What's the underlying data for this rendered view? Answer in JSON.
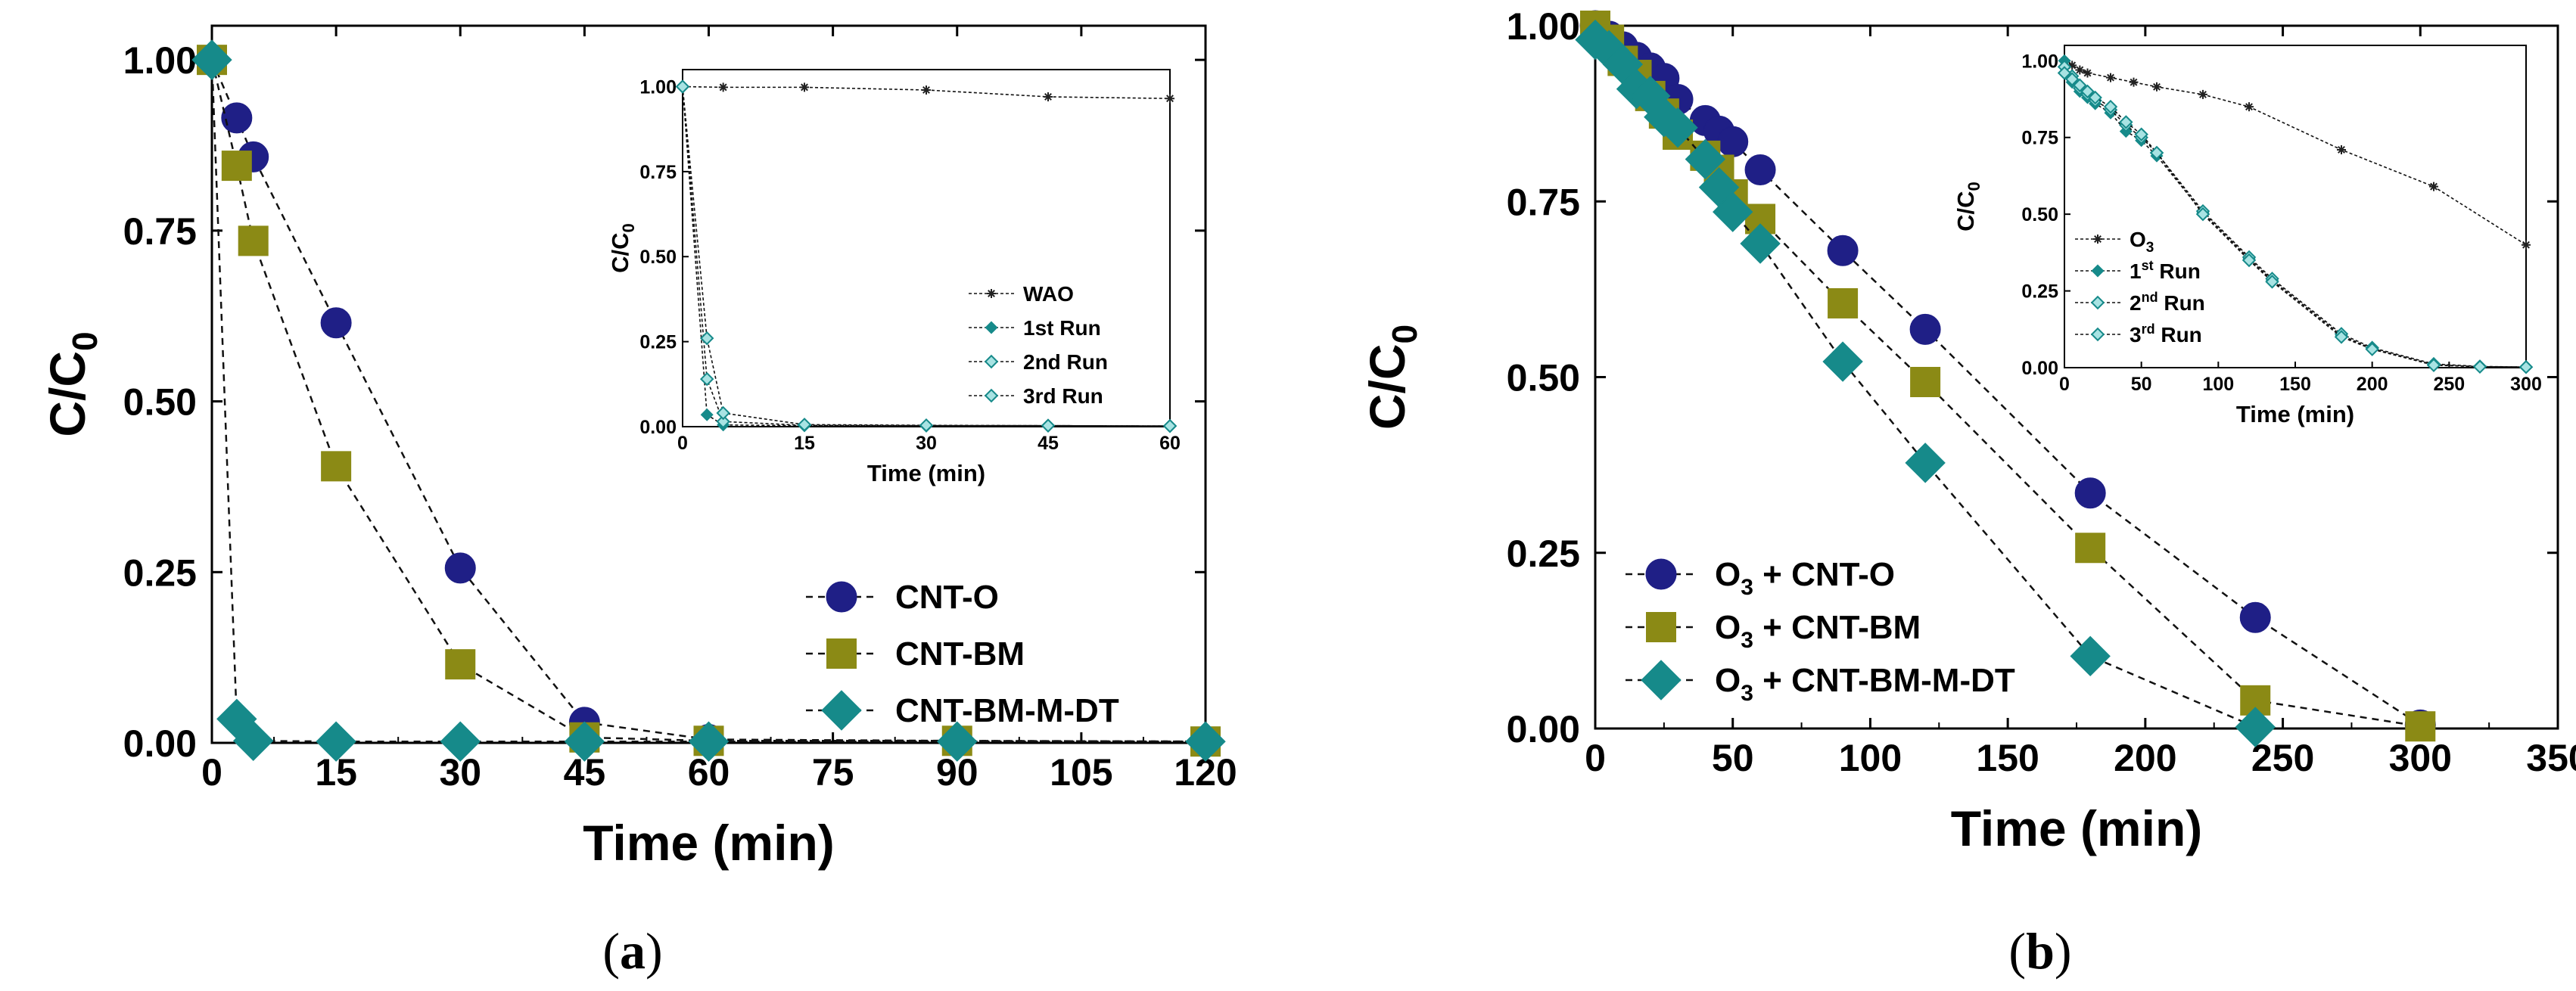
{
  "colors": {
    "navy": "#1f1f86",
    "olive": "#8b8a15",
    "teal": "#168a8a",
    "black": "#000000"
  },
  "chart_data": [
    {
      "panel": "a",
      "caption_prefix": "(",
      "caption_letter": "a",
      "caption_suffix": ")",
      "type": "line",
      "xlabel": "Time (min)",
      "ylabel_main": "C/C",
      "ylabel_sub": "0",
      "xlim": [
        0,
        120
      ],
      "ylim": [
        0,
        1.05
      ],
      "xticks": [
        "0",
        "15",
        "30",
        "45",
        "60",
        "75",
        "90",
        "105",
        "120"
      ],
      "yticks": [
        "0.00",
        "0.25",
        "0.50",
        "0.75",
        "1.00"
      ],
      "legend_position": "lower-right",
      "series": [
        {
          "name": "CNT-O",
          "name_prefix": "",
          "name_sub": "",
          "marker": "circle",
          "color": "#1f1f86",
          "x": [
            0,
            3,
            5,
            15,
            30,
            45,
            60,
            90,
            120
          ],
          "y": [
            1.0,
            0.915,
            0.858,
            0.615,
            0.256,
            0.03,
            0.005,
            0.003,
            0.002
          ]
        },
        {
          "name": "CNT-BM",
          "name_prefix": "",
          "name_sub": "",
          "marker": "square",
          "color": "#8b8a15",
          "x": [
            0,
            3,
            5,
            15,
            30,
            45,
            60,
            90,
            120
          ],
          "y": [
            1.0,
            0.845,
            0.735,
            0.405,
            0.115,
            0.008,
            0.003,
            0.003,
            0.002
          ]
        },
        {
          "name": "CNT-BM-M-DT",
          "name_prefix": "",
          "name_sub": "",
          "marker": "diamond",
          "color": "#168a8a",
          "x": [
            0,
            3,
            5,
            15,
            30,
            45,
            60,
            90,
            120
          ],
          "y": [
            1.0,
            0.035,
            0.003,
            0.002,
            0.002,
            0.002,
            0.002,
            0.002,
            0.002
          ]
        }
      ],
      "inset": {
        "xlabel": "Time (min)",
        "ylabel_main": "C/C",
        "ylabel_sub": "0",
        "xlim": [
          0,
          60
        ],
        "ylim": [
          0,
          1.05
        ],
        "xticks": [
          "0",
          "15",
          "30",
          "45",
          "60"
        ],
        "yticks": [
          "0.00",
          "0.25",
          "0.50",
          "0.75",
          "1.00"
        ],
        "legend_position": "lower-right",
        "series": [
          {
            "name": "WAO",
            "sup": "",
            "suffix": "",
            "marker": "star",
            "x": [
              0,
              5,
              15,
              30,
              45,
              60
            ],
            "y": [
              1.0,
              0.998,
              0.998,
              0.99,
              0.97,
              0.965
            ]
          },
          {
            "name": "1st Run",
            "sup": "",
            "suffix": "",
            "marker": "diamond",
            "x": [
              0,
              3,
              5,
              15,
              30,
              45,
              60
            ],
            "y": [
              1.0,
              0.035,
              0.005,
              0.003,
              0.003,
              0.003,
              0.002
            ]
          },
          {
            "name": "2nd Run",
            "sup": "",
            "suffix": "",
            "marker": "diamond-open",
            "x": [
              0,
              3,
              5,
              15,
              30,
              45,
              60
            ],
            "y": [
              1.0,
              0.14,
              0.015,
              0.004,
              0.003,
              0.003,
              0.002
            ]
          },
          {
            "name": "3rd Run",
            "sup": "",
            "suffix": "",
            "marker": "diamond-open",
            "x": [
              0,
              3,
              5,
              15,
              30,
              45,
              60
            ],
            "y": [
              1.0,
              0.26,
              0.04,
              0.006,
              0.004,
              0.003,
              0.002
            ]
          }
        ]
      }
    },
    {
      "panel": "b",
      "caption_prefix": "(",
      "caption_letter": "b",
      "caption_suffix": ")",
      "type": "line",
      "xlabel": "Time (min)",
      "ylabel_main": "C/C",
      "ylabel_sub": "0",
      "xlim": [
        0,
        350
      ],
      "ylim": [
        0,
        1.0
      ],
      "xticks": [
        "0",
        "50",
        "100",
        "150",
        "200",
        "250",
        "300",
        "350"
      ],
      "yticks": [
        "0.00",
        "0.25",
        "0.50",
        "0.75",
        "1.00"
      ],
      "legend_position": "lower-left",
      "series": [
        {
          "name": " + CNT-O",
          "name_prefix": "O",
          "name_sub": "3",
          "marker": "circle",
          "color": "#1f1f86",
          "x": [
            0,
            5,
            10,
            15,
            20,
            25,
            30,
            40,
            45,
            50,
            60,
            90,
            120,
            180,
            240,
            300
          ],
          "y": [
            1.0,
            0.985,
            0.97,
            0.955,
            0.94,
            0.925,
            0.895,
            0.865,
            0.85,
            0.835,
            0.795,
            0.68,
            0.568,
            0.335,
            0.158,
            0.005
          ]
        },
        {
          "name": " + CNT-BM",
          "name_prefix": "O",
          "name_sub": "3",
          "marker": "square",
          "color": "#8b8a15",
          "x": [
            0,
            5,
            10,
            15,
            20,
            25,
            30,
            40,
            45,
            50,
            60,
            90,
            120,
            180,
            240,
            300
          ],
          "y": [
            1.0,
            0.98,
            0.95,
            0.93,
            0.9,
            0.875,
            0.845,
            0.815,
            0.795,
            0.76,
            0.725,
            0.605,
            0.493,
            0.257,
            0.04,
            0.003
          ]
        },
        {
          "name": " + CNT-BM-M-DT",
          "name_prefix": "O",
          "name_sub": "3",
          "marker": "diamond",
          "color": "#168a8a",
          "x": [
            0,
            5,
            10,
            15,
            20,
            25,
            30,
            40,
            45,
            50,
            60,
            90,
            120,
            180,
            240
          ],
          "y": [
            0.98,
            0.965,
            0.945,
            0.91,
            0.9,
            0.87,
            0.855,
            0.81,
            0.77,
            0.735,
            0.69,
            0.522,
            0.378,
            0.103,
            0.002
          ]
        }
      ],
      "inset": {
        "xlabel": "Time (min)",
        "ylabel_main": "C/C",
        "ylabel_sub": "0",
        "xlim": [
          0,
          300
        ],
        "ylim": [
          0,
          1.05
        ],
        "xticks": [
          "0",
          "50",
          "100",
          "150",
          "200",
          "250",
          "300"
        ],
        "yticks": [
          "0.00",
          "0.25",
          "0.50",
          "0.75",
          "1.00"
        ],
        "legend_position": "lower-left",
        "series": [
          {
            "name": "O",
            "sub": "3",
            "sup": "",
            "suffix": "",
            "marker": "star",
            "x": [
              0,
              5,
              10,
              15,
              30,
              45,
              60,
              90,
              120,
              180,
              240,
              300
            ],
            "y": [
              1.0,
              0.985,
              0.97,
              0.96,
              0.945,
              0.93,
              0.915,
              0.89,
              0.85,
              0.71,
              0.59,
              0.4
            ]
          },
          {
            "name": "1",
            "sup": "st",
            "suffix": " Run",
            "marker": "diamond",
            "x": [
              0,
              5,
              10,
              15,
              20,
              30,
              40,
              50,
              60,
              90,
              120,
              135,
              180,
              200,
              240,
              270,
              300
            ],
            "y": [
              1.0,
              0.93,
              0.9,
              0.88,
              0.86,
              0.83,
              0.77,
              0.74,
              0.69,
              0.505,
              0.355,
              0.285,
              0.105,
              0.062,
              0.01,
              0.003,
              0.002
            ]
          },
          {
            "name": "2",
            "sup": "nd",
            "suffix": " Run",
            "marker": "diamond-open",
            "x": [
              0,
              5,
              10,
              15,
              20,
              30,
              40,
              50,
              60,
              90,
              120,
              135,
              180,
              200,
              240,
              270,
              300
            ],
            "y": [
              0.98,
              0.95,
              0.91,
              0.89,
              0.87,
              0.84,
              0.79,
              0.75,
              0.7,
              0.51,
              0.36,
              0.29,
              0.11,
              0.065,
              0.012,
              0.004,
              0.002
            ]
          },
          {
            "name": "3",
            "sup": "rd",
            "suffix": " Run",
            "marker": "diamond-open",
            "x": [
              0,
              5,
              10,
              15,
              20,
              30,
              40,
              50,
              60,
              90,
              120,
              135,
              180,
              200,
              240,
              270,
              300
            ],
            "y": [
              0.96,
              0.94,
              0.92,
              0.9,
              0.88,
              0.85,
              0.8,
              0.76,
              0.7,
              0.5,
              0.35,
              0.28,
              0.1,
              0.06,
              0.008,
              0.003,
              0.002
            ]
          }
        ]
      }
    }
  ]
}
